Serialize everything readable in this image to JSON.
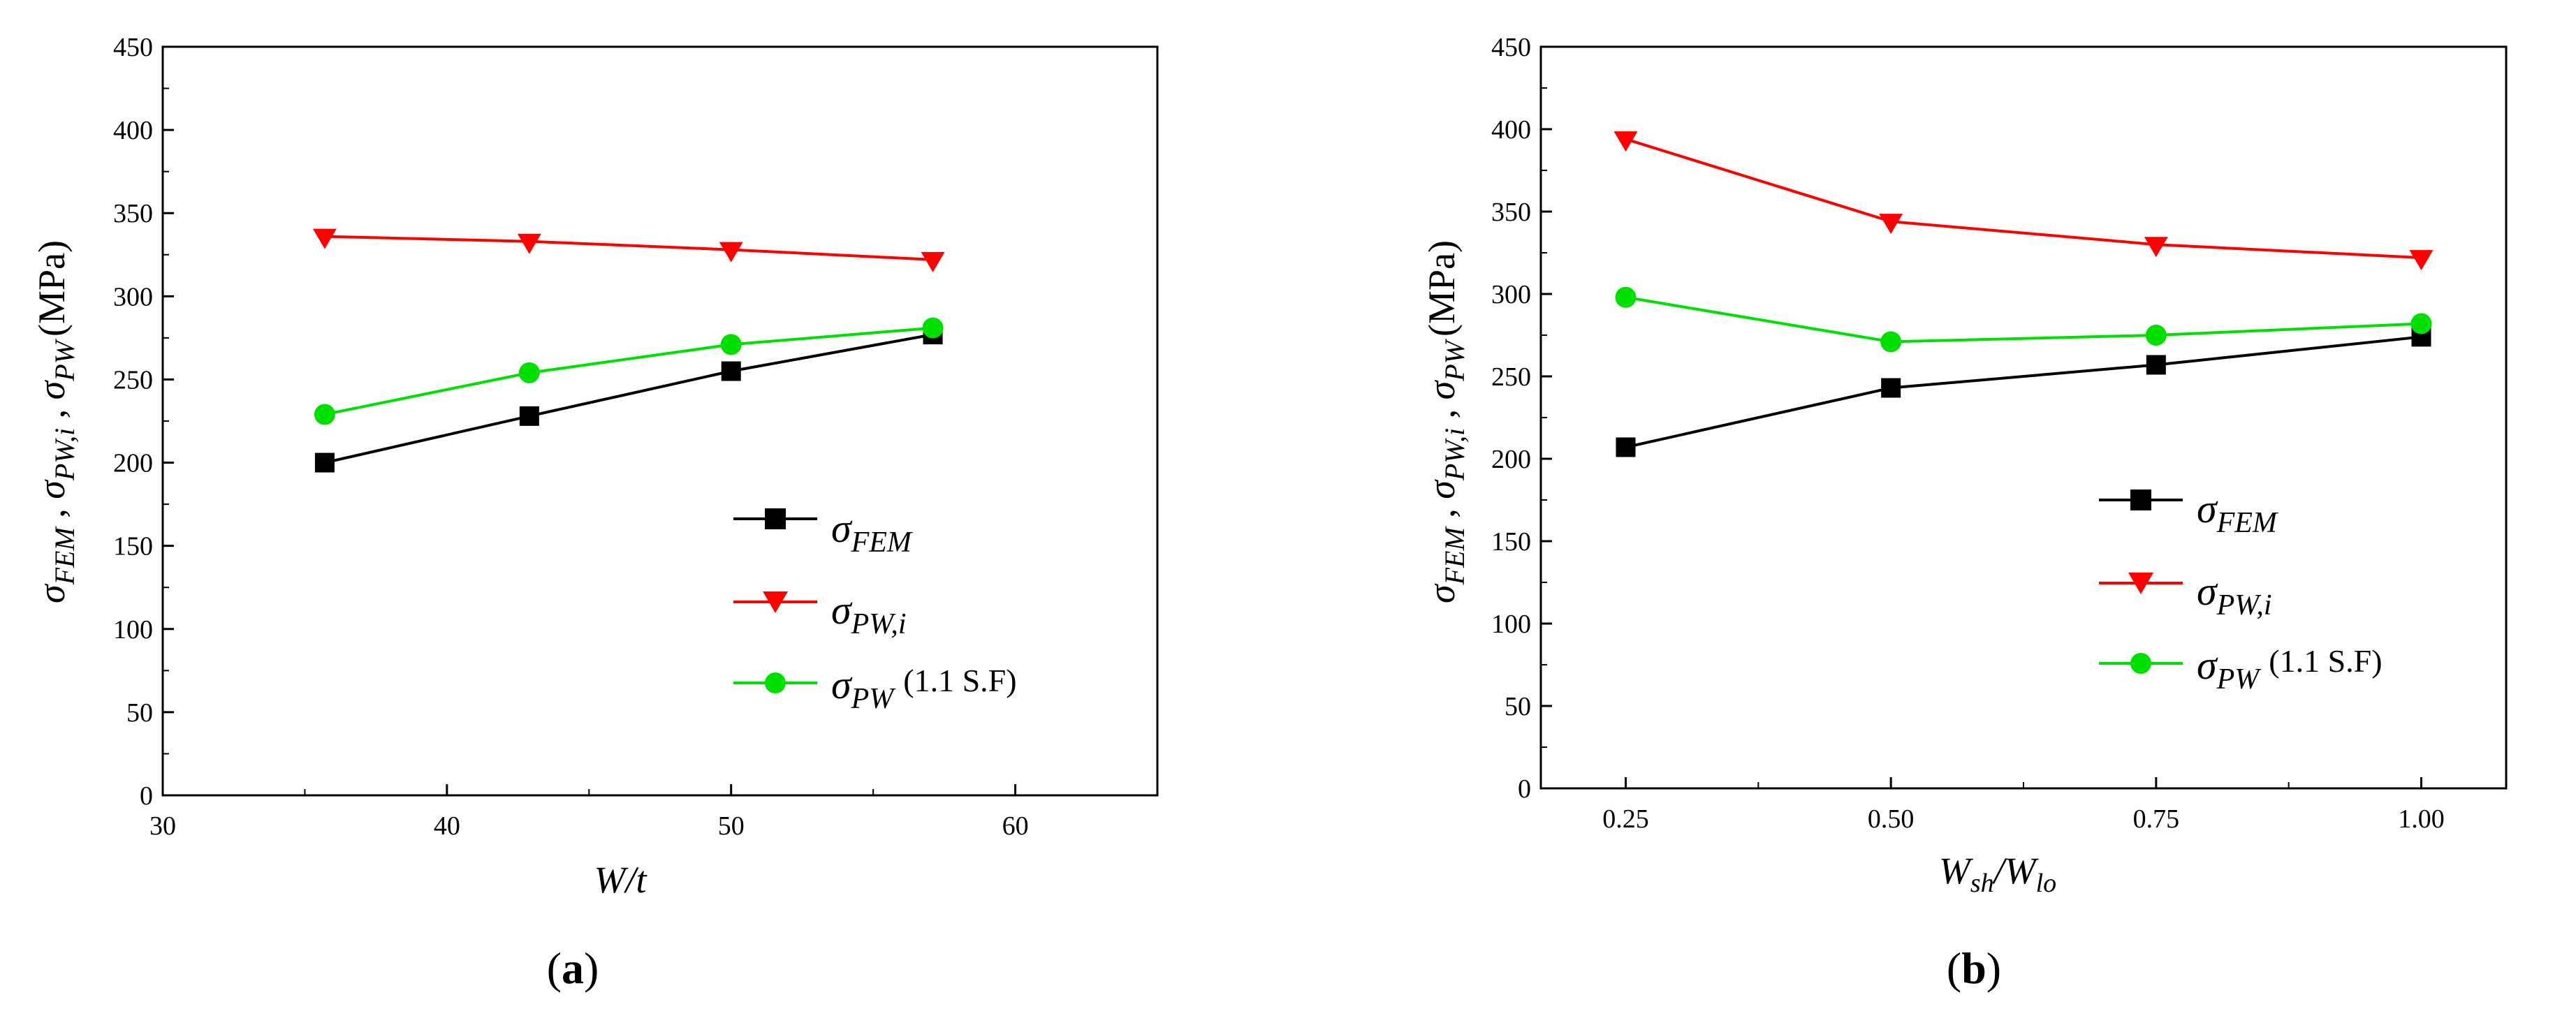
{
  "chart_data": [
    {
      "id": "a",
      "type": "line",
      "caption_open": "(",
      "caption_letter": "a",
      "caption_close": ")",
      "x": [
        35.7,
        42.9,
        50.0,
        57.1
      ],
      "xlim": [
        30,
        65
      ],
      "ylim": [
        0,
        450
      ],
      "xticks": [
        30,
        40,
        50,
        60
      ],
      "yticks": [
        0,
        50,
        100,
        150,
        200,
        250,
        300,
        350,
        400,
        450
      ],
      "xlabel": "W/t",
      "ylabel": {
        "sigma": "σ",
        "fem": "FEM",
        "pwi": "PW,i",
        "pw": "PW",
        "sep": " , ",
        "unit": "(MPa)"
      },
      "legend_position": "lower-right",
      "series": [
        {
          "name": "σFEM",
          "sigma": "σ",
          "sub": "FEM",
          "extra": "",
          "marker": "square",
          "color": "#000000",
          "values": [
            200,
            228,
            255,
            277
          ]
        },
        {
          "name": "σPW,i",
          "sigma": "σ",
          "sub": "PW,i",
          "extra": "",
          "marker": "triangle-down",
          "color": "#ff0000",
          "values": [
            336,
            333,
            328,
            322
          ]
        },
        {
          "name": "σPW (1.1 S.F)",
          "sigma": "σ",
          "sub": "PW",
          "extra": "(1.1 S.F)",
          "marker": "circle",
          "color": "#00e000",
          "values": [
            229,
            254,
            271,
            281
          ]
        }
      ]
    },
    {
      "id": "b",
      "type": "line",
      "caption_open": "(",
      "caption_letter": "b",
      "caption_close": ")",
      "x": [
        0.25,
        0.5,
        0.75,
        1.0
      ],
      "xlim": [
        0.17,
        1.08
      ],
      "ylim": [
        0,
        450
      ],
      "xticks": [
        "0.25",
        "0.50",
        "0.75",
        "1.00"
      ],
      "yticks": [
        0,
        50,
        100,
        150,
        200,
        250,
        300,
        350,
        400,
        450
      ],
      "xlabel": {
        "w1": "W",
        "s1": "sh",
        "slash": "/",
        "w2": "W",
        "s2": "lo"
      },
      "ylabel": {
        "sigma": "σ",
        "fem": "FEM",
        "pwi": "PW,i",
        "pw": "PW",
        "sep": " , ",
        "unit": "(MPa)"
      },
      "legend_position": "lower-right",
      "series": [
        {
          "name": "σFEM",
          "sigma": "σ",
          "sub": "FEM",
          "extra": "",
          "marker": "square",
          "color": "#000000",
          "values": [
            207,
            243,
            257,
            274
          ]
        },
        {
          "name": "σPW,i",
          "sigma": "σ",
          "sub": "PW,i",
          "extra": "",
          "marker": "triangle-down",
          "color": "#ff0000",
          "values": [
            394,
            344,
            330,
            322
          ]
        },
        {
          "name": "σPW (1.1 S.F)",
          "sigma": "σ",
          "sub": "PW",
          "extra": "(1.1 S.F)",
          "marker": "circle",
          "color": "#00e000",
          "values": [
            298,
            271,
            275,
            282
          ]
        }
      ]
    }
  ]
}
